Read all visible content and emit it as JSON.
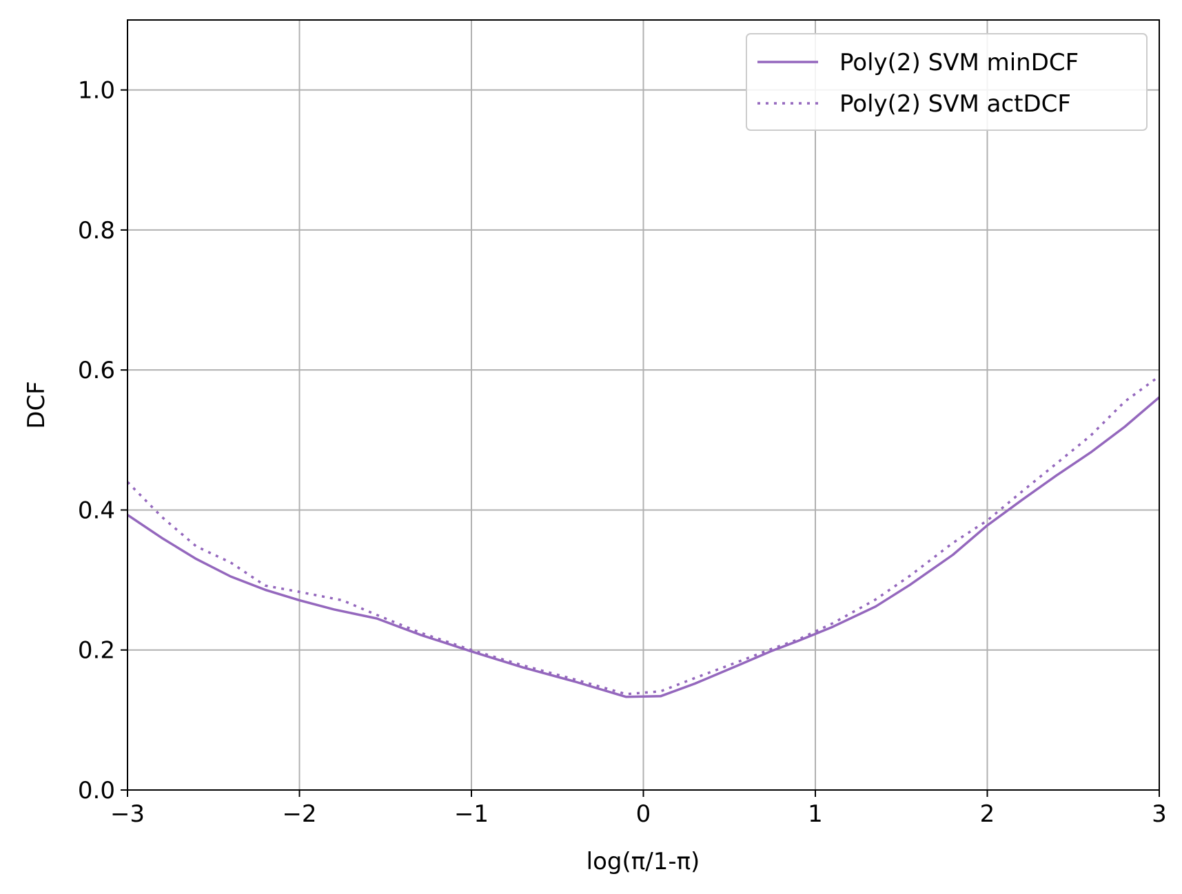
{
  "chart_data": {
    "type": "line",
    "title": "",
    "xlabel": "log(π/1-π)",
    "ylabel": "DCF",
    "xlim": [
      -3,
      3
    ],
    "ylim": [
      0.0,
      1.1
    ],
    "xticks": [
      -3,
      -2,
      -1,
      0,
      1,
      2,
      3
    ],
    "xtick_labels": [
      "−3",
      "−2",
      "−1",
      "0",
      "1",
      "2",
      "3"
    ],
    "yticks": [
      0.0,
      0.2,
      0.4,
      0.6,
      0.8,
      1.0
    ],
    "ytick_labels": [
      "0.0",
      "0.2",
      "0.4",
      "0.6",
      "0.8",
      "1.0"
    ],
    "grid": true,
    "legend_position": "upper-right",
    "series": [
      {
        "name": "Poly(2) SVM minDCF",
        "color": "#9467bd",
        "style": "solid",
        "x": [
          -3.0,
          -2.8,
          -2.6,
          -2.4,
          -2.2,
          -2.0,
          -1.8,
          -1.55,
          -1.3,
          -1.0,
          -0.7,
          -0.4,
          -0.1,
          0.1,
          0.3,
          0.55,
          0.75,
          0.9,
          1.1,
          1.35,
          1.55,
          1.8,
          2.0,
          2.2,
          2.4,
          2.6,
          2.8,
          3.0
        ],
        "y": [
          0.393,
          0.36,
          0.33,
          0.305,
          0.286,
          0.271,
          0.258,
          0.245,
          0.222,
          0.198,
          0.175,
          0.155,
          0.133,
          0.134,
          0.152,
          0.178,
          0.199,
          0.213,
          0.233,
          0.262,
          0.293,
          0.336,
          0.378,
          0.414,
          0.449,
          0.482,
          0.519,
          0.561
        ]
      },
      {
        "name": "Poly(2) SVM actDCF",
        "color": "#9467bd",
        "style": "dotted",
        "x": [
          -3.0,
          -2.8,
          -2.6,
          -2.4,
          -2.2,
          -2.0,
          -1.75,
          -1.55,
          -1.3,
          -1.0,
          -0.7,
          -0.4,
          -0.1,
          0.1,
          0.3,
          0.55,
          0.75,
          0.9,
          1.1,
          1.35,
          1.55,
          1.8,
          2.0,
          2.2,
          2.4,
          2.6,
          2.8,
          3.0
        ],
        "y": [
          0.44,
          0.39,
          0.348,
          0.325,
          0.292,
          0.283,
          0.271,
          0.25,
          0.225,
          0.2,
          0.178,
          0.158,
          0.137,
          0.141,
          0.16,
          0.183,
          0.202,
          0.215,
          0.238,
          0.272,
          0.306,
          0.353,
          0.385,
          0.426,
          0.466,
          0.506,
          0.555,
          0.591
        ]
      }
    ]
  }
}
